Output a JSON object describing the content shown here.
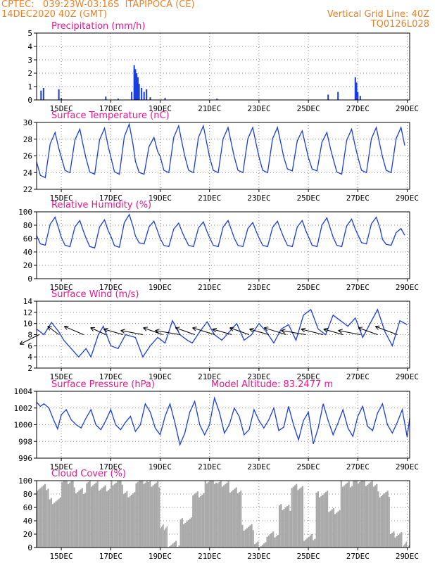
{
  "header": {
    "line1_left": "CPTEC:   039:23W-03:16S  ITAPIPOCA (CE)",
    "line2_left": "14DEC2020 40Z (GMT)",
    "line2_right": "Vertical Grid Line: 40Z",
    "line3_right": "TQ0126L028"
  },
  "colors": {
    "header": "#e8822a",
    "title": "#e8188c",
    "series": "#1a3ddb",
    "cloud": "#a9a9a9"
  },
  "chart_data": [
    {
      "type": "bar",
      "title": "Precipitation (mm/h)",
      "xaxis_ticks": [
        "15DEC",
        "17DEC",
        "19DEC",
        "21DEC",
        "23DEC",
        "25DEC",
        "27DEC",
        "29DEC"
      ],
      "yticks": [
        "0",
        "1",
        "2",
        "3",
        "4",
        "5"
      ],
      "ylim": [
        0,
        5
      ],
      "x_units": "days since 14DEC 00Z",
      "values": [
        {
          "x": 14.18,
          "y": 0.7
        },
        {
          "x": 14.28,
          "y": 0.9
        },
        {
          "x": 14.9,
          "y": 0.8
        },
        {
          "x": 15.0,
          "y": 0.15
        },
        {
          "x": 16.8,
          "y": 0.25
        },
        {
          "x": 17.3,
          "y": 0.1
        },
        {
          "x": 17.85,
          "y": 0.6
        },
        {
          "x": 17.95,
          "y": 2.6
        },
        {
          "x": 18.0,
          "y": 2.3
        },
        {
          "x": 18.05,
          "y": 2.0
        },
        {
          "x": 18.1,
          "y": 1.7
        },
        {
          "x": 18.15,
          "y": 1.2
        },
        {
          "x": 18.25,
          "y": 0.9
        },
        {
          "x": 18.35,
          "y": 0.6
        },
        {
          "x": 18.45,
          "y": 0.8
        },
        {
          "x": 18.6,
          "y": 0.2
        },
        {
          "x": 19.2,
          "y": 0.15
        },
        {
          "x": 21.3,
          "y": 0.1
        },
        {
          "x": 25.8,
          "y": 0.4
        },
        {
          "x": 26.2,
          "y": 0.6
        },
        {
          "x": 26.9,
          "y": 1.7
        },
        {
          "x": 26.95,
          "y": 1.3
        },
        {
          "x": 27.0,
          "y": 0.6
        },
        {
          "x": 27.1,
          "y": 0.3
        }
      ]
    },
    {
      "type": "line",
      "title": "Surface Temperature (nC)",
      "xaxis_ticks": [
        "15DEC",
        "17DEC",
        "19DEC",
        "21DEC",
        "23DEC",
        "25DEC",
        "27DEC",
        "29DEC"
      ],
      "yticks": [
        "22",
        "24",
        "26",
        "28",
        "30"
      ],
      "ylim": [
        22,
        30
      ],
      "daily_max": [
        28.8,
        29.2,
        29.3,
        29.8,
        28.2,
        29.6,
        29.6,
        29.4,
        29.4,
        29.4,
        29.0,
        28.8,
        29.2,
        29.4,
        29.4
      ],
      "daily_min": [
        23.4,
        24.0,
        23.8,
        23.8,
        23.8,
        24.0,
        24.0,
        24.0,
        24.0,
        24.0,
        24.2,
        24.2,
        23.8,
        24.0,
        24.0
      ]
    },
    {
      "type": "line",
      "title": "Relative Humidity (%)",
      "xaxis_ticks": [
        "15DEC",
        "17DEC",
        "19DEC",
        "21DEC",
        "23DEC",
        "25DEC",
        "27DEC",
        "29DEC"
      ],
      "yticks": [
        "0",
        "20",
        "40",
        "60",
        "80",
        "100"
      ],
      "ylim": [
        0,
        100
      ],
      "daily_max": [
        92,
        87,
        88,
        96,
        86,
        83,
        85,
        87,
        84,
        86,
        87,
        91,
        89,
        92,
        75
      ],
      "daily_min": [
        50,
        48,
        46,
        47,
        52,
        48,
        48,
        48,
        48,
        48,
        48,
        48,
        48,
        52,
        50
      ]
    },
    {
      "type": "line",
      "title": "Surface Wind (m/s)",
      "xaxis_ticks": [
        "15DEC",
        "17DEC",
        "19DEC",
        "21DEC",
        "23DEC",
        "25DEC",
        "27DEC",
        "29DEC"
      ],
      "yticks": [
        "2",
        "4",
        "6",
        "8",
        "10",
        "12",
        "14"
      ],
      "ylim": [
        2,
        14
      ],
      "points": [
        [
          14.0,
          9.0
        ],
        [
          14.3,
          8.0
        ],
        [
          14.6,
          10.2
        ],
        [
          14.9,
          8.5
        ],
        [
          15.1,
          7.0
        ],
        [
          15.4,
          5.5
        ],
        [
          15.7,
          4.0
        ],
        [
          16.0,
          5.5
        ],
        [
          16.2,
          4.0
        ],
        [
          16.5,
          8.0
        ],
        [
          16.7,
          9.5
        ],
        [
          17.0,
          6.0
        ],
        [
          17.3,
          5.5
        ],
        [
          17.6,
          8.0
        ],
        [
          18.0,
          7.5
        ],
        [
          18.3,
          4.0
        ],
        [
          18.6,
          6.0
        ],
        [
          18.9,
          7.5
        ],
        [
          19.2,
          6.5
        ],
        [
          19.5,
          10.5
        ],
        [
          19.8,
          8.0
        ],
        [
          20.1,
          7.0
        ],
        [
          20.3,
          6.5
        ],
        [
          20.6,
          8.5
        ],
        [
          20.9,
          10.3
        ],
        [
          21.2,
          8.0
        ],
        [
          21.5,
          7.0
        ],
        [
          21.8,
          8.5
        ],
        [
          22.1,
          10.0
        ],
        [
          22.4,
          7.0
        ],
        [
          22.7,
          8.0
        ],
        [
          23.0,
          10.0
        ],
        [
          23.3,
          8.5
        ],
        [
          23.6,
          6.5
        ],
        [
          23.9,
          9.0
        ],
        [
          24.2,
          9.8
        ],
        [
          24.5,
          7.0
        ],
        [
          24.8,
          11.5
        ],
        [
          25.1,
          12.5
        ],
        [
          25.4,
          9.0
        ],
        [
          25.7,
          8.0
        ],
        [
          26.0,
          11.5
        ],
        [
          26.3,
          10.5
        ],
        [
          26.6,
          9.5
        ],
        [
          26.9,
          11.0
        ],
        [
          27.2,
          7.5
        ],
        [
          27.5,
          10.0
        ],
        [
          27.8,
          12.5
        ],
        [
          28.1,
          8.5
        ],
        [
          28.4,
          6.0
        ],
        [
          28.7,
          10.5
        ],
        [
          29.0,
          9.8
        ]
      ],
      "wind_vectors": [
        [
          14.1,
          -0.7,
          -0.35
        ],
        [
          14.9,
          -0.4,
          0.3
        ],
        [
          15.9,
          -0.7,
          0.3
        ],
        [
          16.8,
          -0.55,
          0.25
        ],
        [
          17.5,
          -0.7,
          0.2
        ],
        [
          18.3,
          -0.8,
          0.15
        ],
        [
          19.1,
          -0.7,
          0.25
        ],
        [
          19.8,
          -0.9,
          0.15
        ],
        [
          20.4,
          -0.7,
          0.25
        ],
        [
          21.2,
          -0.8,
          0.25
        ],
        [
          21.9,
          -0.7,
          0.2
        ],
        [
          22.6,
          -0.7,
          0.25
        ],
        [
          23.4,
          -0.7,
          0.2
        ],
        [
          24.1,
          -0.8,
          0.25
        ],
        [
          24.9,
          -0.9,
          0.15
        ],
        [
          25.6,
          -0.8,
          0.2
        ],
        [
          26.4,
          -0.7,
          0.2
        ],
        [
          27.1,
          -0.8,
          0.15
        ],
        [
          27.8,
          -0.7,
          0.25
        ],
        [
          28.6,
          -0.8,
          0.3
        ]
      ]
    },
    {
      "type": "line",
      "title": "Surface Pressure (hPa)",
      "annotation": "Model Altitude: 83.2477 m",
      "xaxis_ticks": [
        "15DEC",
        "17DEC",
        "19DEC",
        "21DEC",
        "23DEC",
        "25DEC",
        "27DEC",
        "29DEC"
      ],
      "yticks": [
        "996",
        "998",
        "1000",
        "1002",
        "1004"
      ],
      "ylim": [
        996,
        1004
      ],
      "points": [
        [
          14.0,
          1002.7
        ],
        [
          14.15,
          1002.2
        ],
        [
          14.3,
          1002.5
        ],
        [
          14.5,
          1002.0
        ],
        [
          14.7,
          1000.5
        ],
        [
          14.85,
          999.5
        ],
        [
          15.0,
          1001.2
        ],
        [
          15.2,
          1001.8
        ],
        [
          15.4,
          1000.6
        ],
        [
          15.6,
          1000.0
        ],
        [
          15.8,
          999.6
        ],
        [
          16.0,
          1000.8
        ],
        [
          16.2,
          1001.8
        ],
        [
          16.4,
          1000.0
        ],
        [
          16.6,
          999.4
        ],
        [
          16.8,
          1000.5
        ],
        [
          17.0,
          1001.8
        ],
        [
          17.2,
          1000.0
        ],
        [
          17.4,
          999.4
        ],
        [
          17.6,
          1000.3
        ],
        [
          17.8,
          1001.0
        ],
        [
          18.0,
          999.2
        ],
        [
          18.2,
          1000.0
        ],
        [
          18.4,
          1002.5
        ],
        [
          18.6,
          1001.5
        ],
        [
          18.8,
          999.6
        ],
        [
          19.0,
          998.8
        ],
        [
          19.2,
          1001.0
        ],
        [
          19.4,
          1002.5
        ],
        [
          19.6,
          1000.2
        ],
        [
          19.8,
          997.6
        ],
        [
          20.0,
          999.0
        ],
        [
          20.2,
          1001.5
        ],
        [
          20.4,
          1002.8
        ],
        [
          20.6,
          1000.0
        ],
        [
          20.8,
          998.8
        ],
        [
          21.0,
          1000.0
        ],
        [
          21.2,
          1003.2
        ],
        [
          21.4,
          1001.5
        ],
        [
          21.6,
          999.0
        ],
        [
          21.8,
          1000.0
        ],
        [
          22.0,
          1002.0
        ],
        [
          22.2,
          1001.0
        ],
        [
          22.4,
          998.8
        ],
        [
          22.6,
          999.4
        ],
        [
          22.8,
          1001.8
        ],
        [
          23.0,
          1000.5
        ],
        [
          23.2,
          999.6
        ],
        [
          23.4,
          1000.6
        ],
        [
          23.6,
          1002.0
        ],
        [
          23.8,
          999.3
        ],
        [
          24.0,
          999.7
        ],
        [
          24.2,
          1002.2
        ],
        [
          24.4,
          1000.0
        ],
        [
          24.6,
          998.2
        ],
        [
          24.8,
          1000.5
        ],
        [
          25.0,
          1001.5
        ],
        [
          25.2,
          997.7
        ],
        [
          25.4,
          999.6
        ],
        [
          25.6,
          1002.5
        ],
        [
          25.8,
          1000.5
        ],
        [
          26.0,
          998.8
        ],
        [
          26.2,
          1000.2
        ],
        [
          26.4,
          1001.8
        ],
        [
          26.6,
          999.6
        ],
        [
          26.8,
          998.6
        ],
        [
          27.0,
          1001.0
        ],
        [
          27.2,
          1002.2
        ],
        [
          27.4,
          999.8
        ],
        [
          27.6,
          999.3
        ],
        [
          27.8,
          1001.4
        ],
        [
          28.0,
          1002.5
        ],
        [
          28.2,
          1000.0
        ],
        [
          28.4,
          999.0
        ],
        [
          28.6,
          1000.3
        ],
        [
          28.8,
          1001.8
        ],
        [
          29.0,
          998.5
        ],
        [
          29.1,
          1000.8
        ]
      ]
    },
    {
      "type": "bar",
      "title": "Cloud Cover (%)",
      "xaxis_ticks": [
        "15DEC",
        "17DEC",
        "19DEC",
        "21DEC",
        "23DEC",
        "25DEC",
        "27DEC",
        "29DEC"
      ],
      "yticks": [
        "0",
        "20",
        "40",
        "60",
        "80",
        "100"
      ],
      "ylim": [
        0,
        100
      ],
      "segments": [
        [
          14.0,
          14.5,
          90
        ],
        [
          14.5,
          15.0,
          70
        ],
        [
          15.0,
          15.5,
          100
        ],
        [
          15.5,
          16.0,
          85
        ],
        [
          16.0,
          16.5,
          95
        ],
        [
          16.5,
          17.0,
          88
        ],
        [
          17.0,
          17.5,
          98
        ],
        [
          17.5,
          18.0,
          80
        ],
        [
          18.0,
          18.5,
          100
        ],
        [
          18.5,
          19.0,
          95
        ],
        [
          19.0,
          19.3,
          30
        ],
        [
          19.3,
          19.8,
          5
        ],
        [
          19.8,
          20.3,
          40
        ],
        [
          20.3,
          20.8,
          80
        ],
        [
          20.8,
          21.3,
          100
        ],
        [
          21.3,
          21.8,
          95
        ],
        [
          21.8,
          22.3,
          85
        ],
        [
          22.3,
          22.8,
          30
        ],
        [
          22.8,
          23.3,
          5
        ],
        [
          23.3,
          23.8,
          20
        ],
        [
          23.8,
          24.3,
          60
        ],
        [
          24.3,
          24.8,
          90
        ],
        [
          24.8,
          25.3,
          15
        ],
        [
          25.3,
          25.8,
          80
        ],
        [
          25.8,
          26.3,
          55
        ],
        [
          26.3,
          26.8,
          95
        ],
        [
          26.8,
          27.3,
          100
        ],
        [
          27.3,
          27.8,
          95
        ],
        [
          27.8,
          28.3,
          80
        ],
        [
          28.3,
          28.8,
          20
        ],
        [
          28.8,
          29.1,
          5
        ]
      ]
    }
  ]
}
